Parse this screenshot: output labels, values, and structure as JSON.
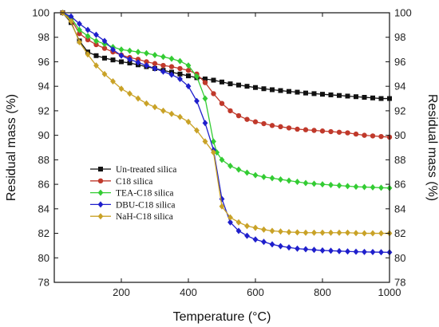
{
  "chart_data": {
    "type": "line",
    "xlabel": "Temperature (°C)",
    "ylabel": "Residual mass (%)",
    "ylabel_right": "Residual mass (%)",
    "xlim": [
      0,
      1000
    ],
    "ylim": [
      78,
      100
    ],
    "xticks": [
      200,
      400,
      600,
      800,
      1000
    ],
    "yticks": [
      78,
      80,
      82,
      84,
      86,
      88,
      90,
      92,
      94,
      96,
      98,
      100
    ],
    "grid": false,
    "legend_position": "lower-left",
    "series": [
      {
        "name": "Un-treated silica",
        "color": "#111111",
        "marker": "square",
        "x": [
          25,
          50,
          75,
          100,
          125,
          150,
          175,
          200,
          225,
          250,
          275,
          300,
          325,
          350,
          375,
          400,
          425,
          450,
          475,
          500,
          525,
          550,
          575,
          600,
          625,
          650,
          675,
          700,
          725,
          750,
          775,
          800,
          825,
          850,
          875,
          900,
          925,
          950,
          975,
          1000
        ],
        "y": [
          100,
          99.2,
          97.7,
          96.8,
          96.5,
          96.3,
          96.15,
          96.0,
          95.9,
          95.75,
          95.6,
          95.45,
          95.3,
          95.15,
          95.0,
          94.85,
          94.7,
          94.6,
          94.5,
          94.35,
          94.2,
          94.1,
          94.0,
          93.9,
          93.8,
          93.72,
          93.65,
          93.58,
          93.52,
          93.45,
          93.4,
          93.35,
          93.3,
          93.25,
          93.2,
          93.15,
          93.1,
          93.05,
          93.0,
          93.0
        ]
      },
      {
        "name": "C18 silica",
        "color": "#c0392b",
        "marker": "circle",
        "x": [
          25,
          50,
          75,
          100,
          125,
          150,
          175,
          200,
          225,
          250,
          275,
          300,
          325,
          350,
          375,
          400,
          425,
          450,
          475,
          500,
          525,
          550,
          575,
          600,
          625,
          650,
          675,
          700,
          725,
          750,
          775,
          800,
          825,
          850,
          875,
          900,
          925,
          950,
          975,
          1000
        ],
        "y": [
          100,
          99.5,
          98.3,
          97.8,
          97.4,
          97.1,
          96.8,
          96.55,
          96.35,
          96.2,
          96.0,
          95.85,
          95.7,
          95.6,
          95.45,
          95.3,
          95.0,
          94.3,
          93.4,
          92.6,
          92.0,
          91.6,
          91.3,
          91.1,
          90.95,
          90.8,
          90.7,
          90.6,
          90.5,
          90.45,
          90.4,
          90.35,
          90.3,
          90.25,
          90.2,
          90.1,
          90.0,
          89.95,
          89.9,
          89.85
        ]
      },
      {
        "name": "TEA-C18 silica",
        "color": "#33cc33",
        "marker": "diamond",
        "x": [
          25,
          50,
          75,
          100,
          125,
          150,
          175,
          200,
          225,
          250,
          275,
          300,
          325,
          350,
          375,
          400,
          425,
          450,
          475,
          485,
          500,
          525,
          550,
          575,
          600,
          625,
          650,
          675,
          700,
          725,
          750,
          775,
          800,
          825,
          850,
          875,
          900,
          925,
          950,
          975,
          1000
        ],
        "y": [
          100,
          99.6,
          98.6,
          98.1,
          97.7,
          97.45,
          97.2,
          97.0,
          96.9,
          96.8,
          96.7,
          96.55,
          96.4,
          96.25,
          96.05,
          95.7,
          94.8,
          93.0,
          89.5,
          88.6,
          88.0,
          87.5,
          87.2,
          86.95,
          86.75,
          86.6,
          86.5,
          86.4,
          86.3,
          86.2,
          86.1,
          86.05,
          86.0,
          85.95,
          85.9,
          85.85,
          85.8,
          85.78,
          85.75,
          85.72,
          85.7
        ]
      },
      {
        "name": "DBU-C18 silica",
        "color": "#1f1fcc",
        "marker": "diamond",
        "x": [
          25,
          50,
          75,
          100,
          125,
          150,
          175,
          200,
          225,
          250,
          275,
          300,
          325,
          350,
          375,
          400,
          425,
          450,
          475,
          500,
          525,
          550,
          575,
          600,
          625,
          650,
          675,
          700,
          725,
          750,
          775,
          800,
          825,
          850,
          875,
          900,
          925,
          950,
          975,
          1000
        ],
        "y": [
          100,
          99.7,
          99.1,
          98.6,
          98.2,
          97.7,
          97.0,
          96.5,
          96.2,
          95.95,
          95.7,
          95.45,
          95.2,
          94.95,
          94.6,
          94.0,
          92.8,
          91.0,
          88.8,
          84.8,
          82.9,
          82.2,
          81.8,
          81.5,
          81.3,
          81.1,
          80.95,
          80.85,
          80.75,
          80.7,
          80.65,
          80.6,
          80.58,
          80.55,
          80.52,
          80.5,
          80.48,
          80.47,
          80.46,
          80.45
        ]
      },
      {
        "name": "NaH-C18 silica",
        "color": "#c9a227",
        "marker": "diamond",
        "x": [
          25,
          50,
          75,
          100,
          125,
          150,
          175,
          200,
          225,
          250,
          275,
          300,
          325,
          350,
          375,
          400,
          425,
          450,
          475,
          500,
          525,
          550,
          575,
          600,
          625,
          650,
          675,
          700,
          725,
          750,
          775,
          800,
          825,
          850,
          875,
          900,
          925,
          950,
          975,
          1000
        ],
        "y": [
          100,
          99.3,
          97.6,
          96.6,
          95.7,
          95.0,
          94.4,
          93.8,
          93.4,
          93.0,
          92.6,
          92.3,
          92.0,
          91.75,
          91.5,
          91.1,
          90.4,
          89.5,
          88.6,
          84.2,
          83.3,
          82.9,
          82.6,
          82.45,
          82.3,
          82.2,
          82.15,
          82.1,
          82.08,
          82.05,
          82.05,
          82.05,
          82.05,
          82.05,
          82.05,
          82.02,
          82.0,
          82.0,
          82.0,
          82.0
        ]
      }
    ]
  }
}
